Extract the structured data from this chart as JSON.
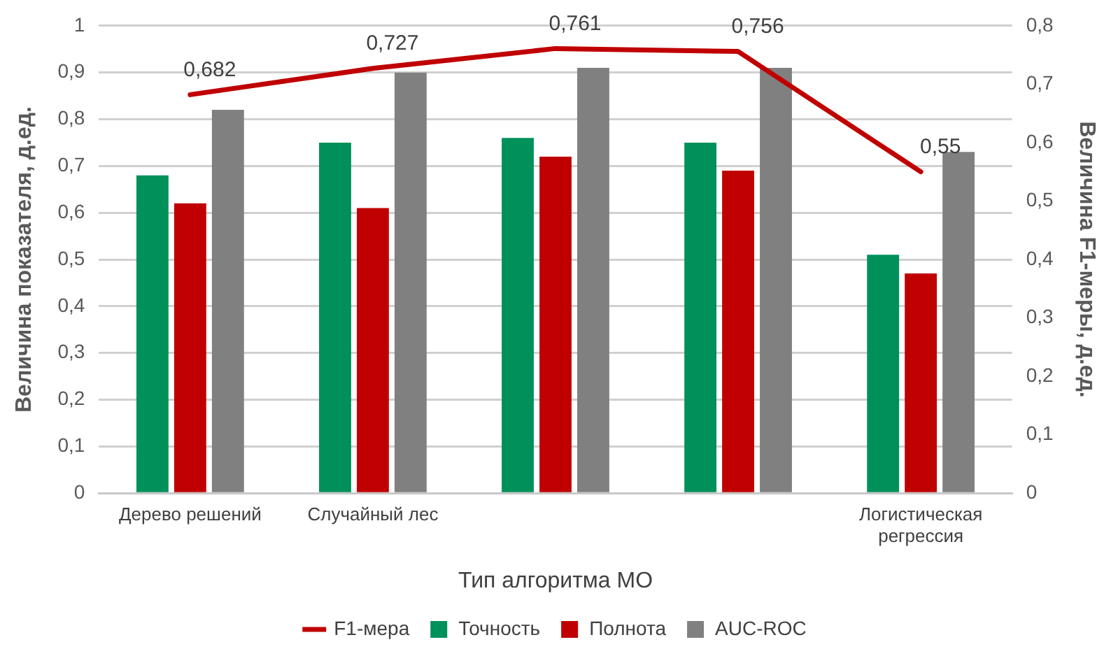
{
  "chart_data": {
    "type": "bar",
    "xlabel": "Тип алгоритма МО",
    "ylabel": "Величина показателя, д.ед.",
    "y2label": "Величина F1-меры, д.ед.",
    "categories": [
      "Дерево решений",
      "Случайный лес",
      null,
      null,
      "Логистическая регрессия"
    ],
    "series": [
      {
        "name": "Точность",
        "color": "#00905a",
        "values": [
          0.68,
          0.75,
          0.76,
          0.75,
          0.51
        ]
      },
      {
        "name": "Полнота",
        "color": "#c00000",
        "values": [
          0.62,
          0.61,
          0.72,
          0.69,
          0.47
        ]
      },
      {
        "name": "AUC-ROC",
        "color": "#808080",
        "values": [
          0.82,
          0.9,
          0.91,
          0.91,
          0.73
        ]
      },
      {
        "name": "F1-мера",
        "color": "#c00000",
        "type": "line",
        "axis": "y2",
        "values": [
          0.682,
          0.727,
          0.761,
          0.756,
          0.55
        ],
        "value_labels": [
          "0,682",
          "0,727",
          "0,761",
          "0,756",
          "0,55"
        ]
      }
    ],
    "ylim": [
      0,
      1
    ],
    "yticks": [
      0,
      {
        "value": 0.1,
        "label": "0,1"
      },
      {
        "value": 0.2,
        "label": "0,2"
      },
      {
        "value": 0.3,
        "label": "0,3"
      },
      {
        "value": 0.4,
        "label": "0,4"
      },
      {
        "value": 0.5,
        "label": "0,5"
      },
      {
        "value": 0.6,
        "label": "0,6"
      },
      {
        "value": 0.7,
        "label": "0,7"
      },
      {
        "value": 0.8,
        "label": "0,8"
      },
      {
        "value": 0.9,
        "label": "0,9"
      },
      1
    ],
    "y2lim": [
      0,
      0.8
    ],
    "y2ticks": [
      0,
      {
        "value": 0.1,
        "label": "0,1"
      },
      {
        "value": 0.2,
        "label": "0,2"
      },
      {
        "value": 0.3,
        "label": "0,3"
      },
      {
        "value": 0.4,
        "label": "0,4"
      },
      {
        "value": 0.5,
        "label": "0,5"
      },
      {
        "value": 0.6,
        "label": "0,6"
      },
      {
        "value": 0.7,
        "label": "0,7"
      },
      {
        "value": 0.8,
        "label": "0,8"
      }
    ],
    "grid": "y",
    "legend": "bottom",
    "marker": "none",
    "line_style": "solid"
  }
}
